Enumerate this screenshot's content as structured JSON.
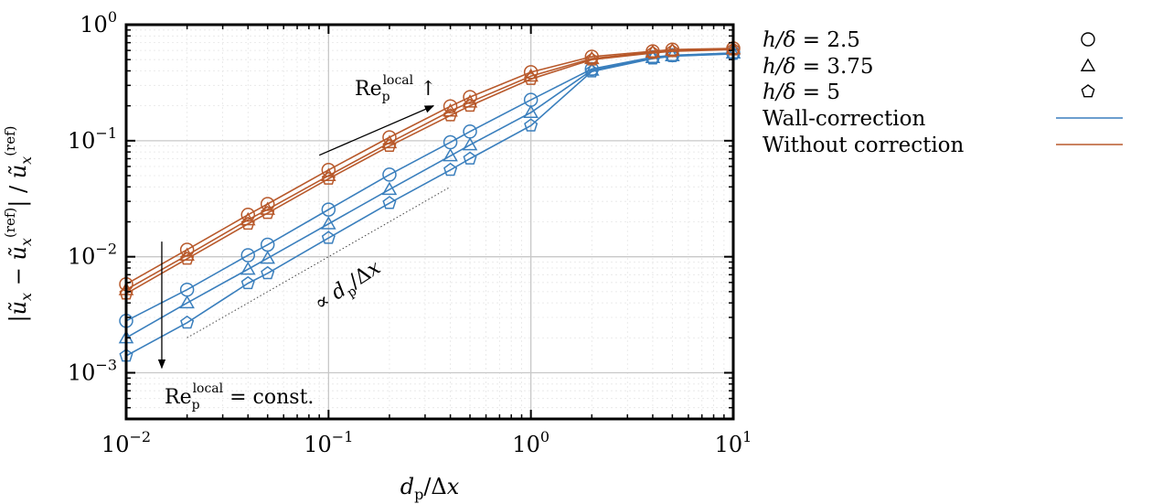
{
  "chart_data": {
    "type": "line",
    "xscale": "log",
    "yscale": "log",
    "xlim": [
      0.01,
      10
    ],
    "ylim": [
      0.0004,
      1
    ],
    "grid": true,
    "x_tick_labels": [
      {
        "base": "10",
        "exp": "−2",
        "value": 0.01
      },
      {
        "base": "10",
        "exp": "−1",
        "value": 0.1
      },
      {
        "base": "10",
        "exp": "0",
        "value": 1
      },
      {
        "base": "10",
        "exp": "1",
        "value": 10
      }
    ],
    "y_tick_labels": [
      {
        "base": "10",
        "exp": "0",
        "value": 1
      },
      {
        "base": "10",
        "exp": "−1",
        "value": 0.1
      },
      {
        "base": "10",
        "exp": "−2",
        "value": 0.01
      },
      {
        "base": "10",
        "exp": "−3",
        "value": 0.001
      }
    ],
    "xlabel": "d_p/Δx",
    "ylabel": "|ũ_x − ũ_x^(ref)| / ũ_x^(ref)",
    "x": [
      0.01,
      0.02,
      0.04,
      0.05,
      0.1,
      0.2,
      0.4,
      0.5,
      1,
      2,
      4,
      5,
      10
    ],
    "series": [
      {
        "group": "wall",
        "marker": "circle",
        "color": "#3a7fbd",
        "values": [
          0.0028,
          0.0052,
          0.0103,
          0.0127,
          0.0255,
          0.051,
          0.097,
          0.12,
          0.225,
          0.415,
          0.525,
          0.545,
          0.57
        ]
      },
      {
        "group": "wall",
        "marker": "triangle",
        "color": "#3a7fbd",
        "values": [
          0.002,
          0.004,
          0.0078,
          0.0097,
          0.0192,
          0.038,
          0.074,
          0.092,
          0.175,
          0.405,
          0.52,
          0.54,
          0.57
        ]
      },
      {
        "group": "wall",
        "marker": "pentagon",
        "color": "#3a7fbd",
        "values": [
          0.0014,
          0.0027,
          0.0059,
          0.0072,
          0.0145,
          0.029,
          0.056,
          0.07,
          0.135,
          0.395,
          0.51,
          0.535,
          0.56
        ]
      },
      {
        "group": "nocorr",
        "marker": "circle",
        "color": "#b8592b",
        "values": [
          0.0058,
          0.0115,
          0.023,
          0.0285,
          0.056,
          0.107,
          0.198,
          0.238,
          0.39,
          0.53,
          0.59,
          0.61,
          0.625
        ]
      },
      {
        "group": "nocorr",
        "marker": "triangle",
        "color": "#b8592b",
        "values": [
          0.0052,
          0.0103,
          0.0208,
          0.0256,
          0.05,
          0.096,
          0.18,
          0.215,
          0.36,
          0.51,
          0.58,
          0.6,
          0.62
        ]
      },
      {
        "group": "nocorr",
        "marker": "pentagon",
        "color": "#b8592b",
        "values": [
          0.0048,
          0.0096,
          0.0192,
          0.0238,
          0.047,
          0.09,
          0.165,
          0.2,
          0.34,
          0.5,
          0.57,
          0.59,
          0.61
        ]
      }
    ],
    "legend": {
      "placement": "right",
      "marker_entries": [
        {
          "label": "h/δ = 2.5",
          "marker": "circle"
        },
        {
          "label": "h/δ = 3.75",
          "marker": "triangle"
        },
        {
          "label": "h/δ = 5",
          "marker": "pentagon"
        }
      ],
      "line_entries": [
        {
          "label": "Wall-correction",
          "color": "#3a7fbd"
        },
        {
          "label": "Without correction",
          "color": "#b8592b"
        }
      ]
    },
    "annotations": {
      "re_increase": {
        "text": "Re_p^local ↑",
        "arrow_from": [
          0.09,
          0.075
        ],
        "arrow_to": [
          0.33,
          0.2
        ]
      },
      "re_const": {
        "text": "Re_p^local = const.",
        "arrow_x": 0.015,
        "arrow_from_y": 0.0135,
        "arrow_to_y": 0.0011
      },
      "slope": {
        "text": "∝ d_p/Δx",
        "line_from": [
          0.02,
          0.002
        ],
        "line_to": [
          0.4,
          0.04
        ]
      }
    }
  }
}
